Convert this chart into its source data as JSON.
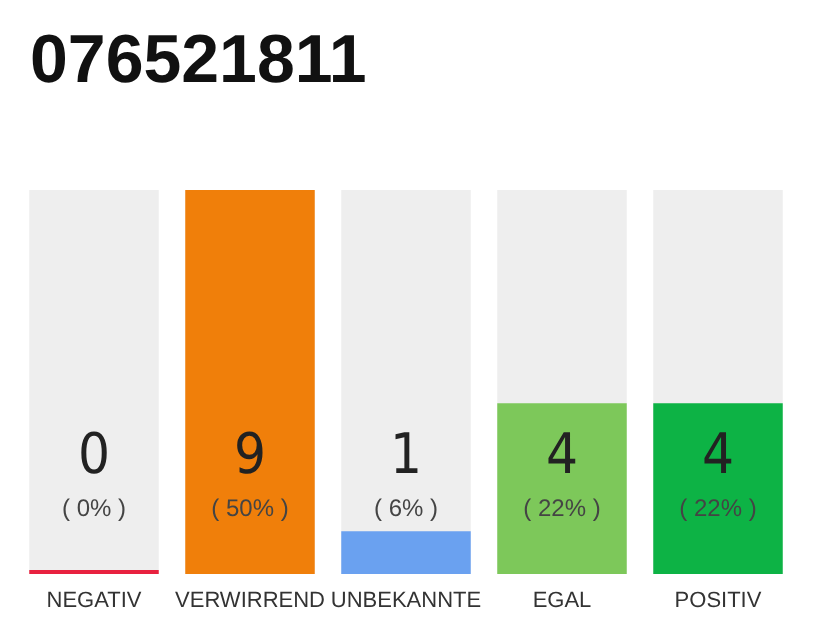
{
  "chart_data": {
    "type": "bar",
    "title": "076521811",
    "categories": [
      "NEGATIV",
      "VERWIRREND",
      "UNBEKANNTE",
      "EGAL",
      "POSITIV"
    ],
    "values": [
      0,
      9,
      1,
      4,
      4
    ],
    "colors": [
      "#e8213f",
      "#f07f0a",
      "#6aa1f0",
      "#7dc85a",
      "#0db345"
    ],
    "value_labels": [
      "0\n( 0% )",
      "9\n( 50% )",
      "1\n( 6% )",
      "4\n( 22% )",
      "4\n( 22% )"
    ],
    "tick_labels": "x",
    "grid": false
  }
}
